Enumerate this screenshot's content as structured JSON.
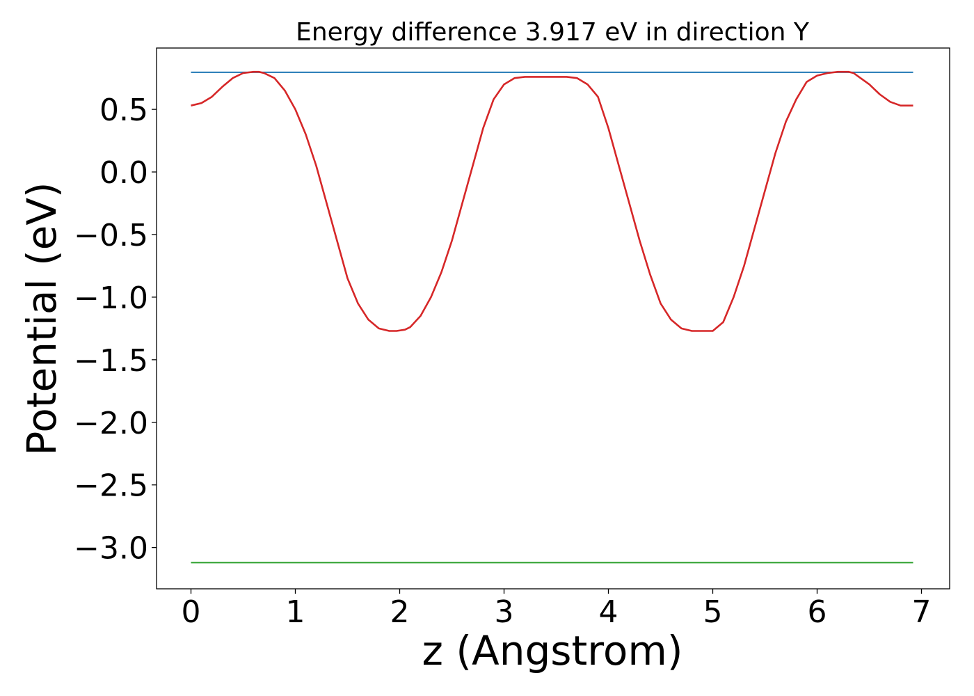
{
  "chart_data": {
    "type": "line",
    "title": "Energy difference 3.917 eV in direction Y",
    "xlabel": "z (Angstrom)",
    "ylabel": "Potential (eV)",
    "xlim": [
      -0.33,
      7.27
    ],
    "ylim": [
      -3.33,
      0.99
    ],
    "xticks": [
      0,
      1,
      2,
      3,
      4,
      5,
      6,
      7
    ],
    "xtick_labels": [
      "0",
      "1",
      "2",
      "3",
      "4",
      "5",
      "6",
      "7"
    ],
    "yticks": [
      0.5,
      0.0,
      -0.5,
      -1.0,
      -1.5,
      -2.0,
      -2.5,
      -3.0
    ],
    "ytick_labels": [
      "0.5",
      "0.0",
      "−0.5",
      "−1.0",
      "−1.5",
      "−2.0",
      "−2.5",
      "−3.0"
    ],
    "grid": false,
    "legend": "none",
    "series": [
      {
        "color": "#1f77b4",
        "style": "horizontal-line",
        "x": [
          0,
          6.92
        ],
        "y": [
          0.796,
          0.796
        ]
      },
      {
        "color": "#2ca02c",
        "style": "horizontal-line",
        "x": [
          0,
          6.92
        ],
        "y": [
          -3.121,
          -3.121
        ]
      },
      {
        "color": "#d62728",
        "style": "curve",
        "x": [
          0,
          0.1,
          0.2,
          0.3,
          0.4,
          0.5,
          0.6,
          0.65,
          0.7,
          0.8,
          0.9,
          1.0,
          1.1,
          1.2,
          1.3,
          1.4,
          1.5,
          1.6,
          1.7,
          1.8,
          1.9,
          1.97,
          2.05,
          2.1,
          2.2,
          2.3,
          2.4,
          2.5,
          2.6,
          2.7,
          2.8,
          2.9,
          3.0,
          3.1,
          3.2,
          3.3,
          3.4,
          3.5,
          3.6,
          3.7,
          3.8,
          3.9,
          4.0,
          4.1,
          4.2,
          4.3,
          4.4,
          4.5,
          4.6,
          4.7,
          4.8,
          4.9,
          5.0,
          5.1,
          5.2,
          5.3,
          5.4,
          5.5,
          5.6,
          5.7,
          5.8,
          5.9,
          6.0,
          6.1,
          6.2,
          6.3,
          6.35,
          6.4,
          6.5,
          6.6,
          6.7,
          6.8,
          6.92
        ],
        "y": [
          0.53,
          0.55,
          0.6,
          0.68,
          0.75,
          0.79,
          0.8,
          0.8,
          0.79,
          0.75,
          0.65,
          0.5,
          0.3,
          0.05,
          -0.25,
          -0.55,
          -0.85,
          -1.05,
          -1.18,
          -1.25,
          -1.27,
          -1.27,
          -1.26,
          -1.24,
          -1.15,
          -1.0,
          -0.8,
          -0.55,
          -0.25,
          0.05,
          0.35,
          0.58,
          0.7,
          0.75,
          0.76,
          0.76,
          0.76,
          0.76,
          0.76,
          0.75,
          0.7,
          0.6,
          0.35,
          0.05,
          -0.25,
          -0.55,
          -0.82,
          -1.05,
          -1.18,
          -1.25,
          -1.27,
          -1.27,
          -1.27,
          -1.2,
          -1.0,
          -0.75,
          -0.45,
          -0.15,
          0.15,
          0.4,
          0.58,
          0.72,
          0.77,
          0.79,
          0.8,
          0.8,
          0.79,
          0.76,
          0.7,
          0.62,
          0.56,
          0.53,
          0.53
        ]
      }
    ]
  }
}
